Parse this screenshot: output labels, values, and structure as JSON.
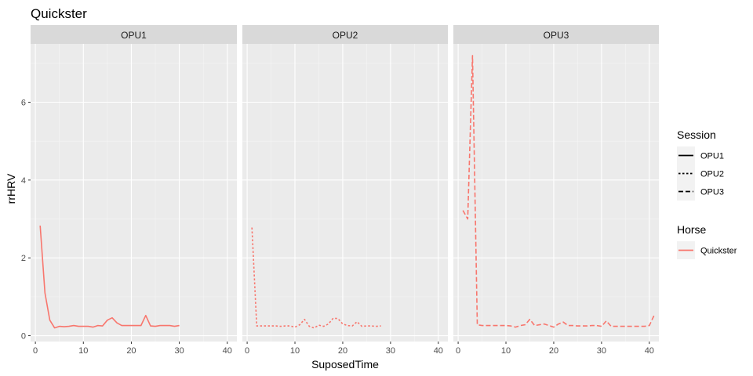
{
  "chart_data": {
    "type": "line",
    "title": "Quickster",
    "xlabel": "SuposedTime",
    "ylabel": "rrHRV",
    "xlim": [
      -1,
      42
    ],
    "ylim": [
      -0.15,
      7.5
    ],
    "x_ticks": [
      0,
      10,
      20,
      30,
      40
    ],
    "x_tick_labels": [
      "0",
      "10",
      "20",
      "30",
      "40"
    ],
    "y_ticks": [
      0,
      2,
      4,
      6
    ],
    "y_tick_labels": [
      "0",
      "2",
      "4",
      "6"
    ],
    "grid": true,
    "panel_background": "#ebebeb",
    "strip_background": "#d9d9d9",
    "line_color": "#F8766D",
    "facets": [
      "OPU1",
      "OPU2",
      "OPU3"
    ],
    "series": [
      {
        "name": "OPU1",
        "facet": "OPU1",
        "linetype": "solid",
        "x": [
          1,
          2,
          3,
          4,
          5,
          6,
          7,
          8,
          9,
          10,
          11,
          12,
          13,
          14,
          15,
          16,
          17,
          18,
          19,
          20,
          21,
          22,
          23,
          24,
          25,
          26,
          27,
          28,
          29,
          30
        ],
        "y": [
          2.83,
          1.1,
          0.4,
          0.2,
          0.24,
          0.23,
          0.24,
          0.26,
          0.24,
          0.24,
          0.24,
          0.22,
          0.26,
          0.25,
          0.4,
          0.46,
          0.33,
          0.26,
          0.26,
          0.26,
          0.26,
          0.26,
          0.52,
          0.25,
          0.24,
          0.26,
          0.26,
          0.26,
          0.24,
          0.26
        ]
      },
      {
        "name": "OPU2",
        "facet": "OPU2",
        "linetype": "dotted",
        "x": [
          1,
          2,
          3,
          4,
          5,
          6,
          7,
          8,
          9,
          10,
          11,
          12,
          13,
          14,
          15,
          16,
          17,
          18,
          19,
          20,
          21,
          22,
          23,
          24,
          25,
          26,
          27,
          28
        ],
        "y": [
          2.78,
          0.25,
          0.25,
          0.25,
          0.25,
          0.25,
          0.24,
          0.25,
          0.25,
          0.22,
          0.28,
          0.42,
          0.24,
          0.2,
          0.27,
          0.24,
          0.3,
          0.45,
          0.44,
          0.3,
          0.26,
          0.25,
          0.36,
          0.24,
          0.25,
          0.25,
          0.24,
          0.25
        ]
      },
      {
        "name": "OPU3",
        "facet": "OPU3",
        "linetype": "dashed",
        "x": [
          1,
          2,
          3,
          4,
          5,
          6,
          7,
          8,
          9,
          10,
          11,
          12,
          13,
          14,
          15,
          16,
          17,
          18,
          19,
          20,
          21,
          22,
          23,
          24,
          25,
          26,
          27,
          28,
          29,
          30,
          31,
          32,
          33,
          34,
          35,
          36,
          37,
          38,
          39,
          40,
          41
        ],
        "y": [
          3.22,
          3.0,
          7.2,
          0.28,
          0.26,
          0.26,
          0.26,
          0.26,
          0.26,
          0.26,
          0.25,
          0.22,
          0.26,
          0.28,
          0.42,
          0.26,
          0.28,
          0.3,
          0.26,
          0.22,
          0.3,
          0.35,
          0.26,
          0.26,
          0.25,
          0.25,
          0.25,
          0.26,
          0.26,
          0.24,
          0.38,
          0.24,
          0.24,
          0.24,
          0.24,
          0.24,
          0.24,
          0.24,
          0.24,
          0.26,
          0.52
        ]
      }
    ],
    "legends": [
      {
        "title": "Session",
        "position": "right",
        "entries": [
          {
            "label": "OPU1",
            "linetype": "solid",
            "color": "#000000"
          },
          {
            "label": "OPU2",
            "linetype": "dotted",
            "color": "#000000"
          },
          {
            "label": "OPU3",
            "linetype": "dashed",
            "color": "#000000"
          }
        ]
      },
      {
        "title": "Horse",
        "position": "right",
        "entries": [
          {
            "label": "Quickster",
            "linetype": "solid",
            "color": "#F8766D"
          }
        ]
      }
    ]
  }
}
